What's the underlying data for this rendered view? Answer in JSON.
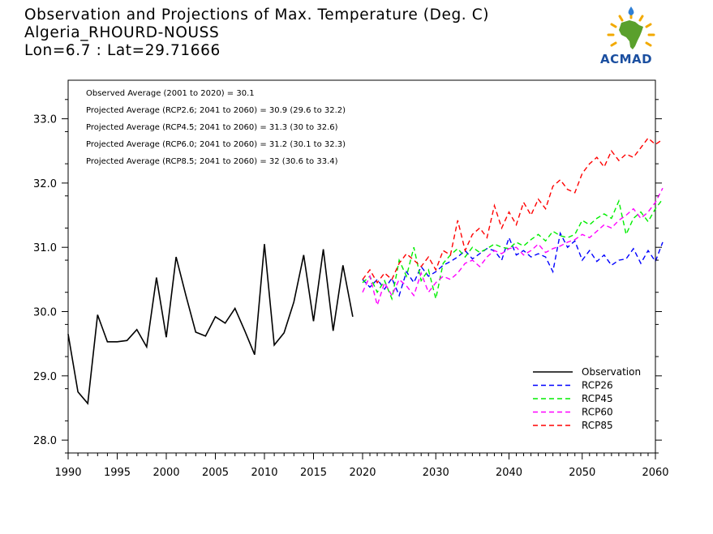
{
  "header": {
    "title_line1": "Observation and Projections of Max. Temperature (Deg. C)",
    "title_line2": "Algeria_RHOURD-NOUSS",
    "title_line3": "Lon=6.7 : Lat=29.71666"
  },
  "logo": {
    "text": "ACMAD",
    "colors": {
      "africa": "#5aa02c",
      "text": "#1b4fa0",
      "drop": "#2f7fd6",
      "rays": "#f2a900"
    }
  },
  "chart_data": {
    "type": "line",
    "xlim": [
      1990,
      2060
    ],
    "ylim": [
      27.8,
      33.6
    ],
    "x_ticks": [
      1990,
      1995,
      2000,
      2005,
      2010,
      2015,
      2020,
      2030,
      2040,
      2050,
      2060
    ],
    "y_ticks": [
      28.0,
      29.0,
      30.0,
      31.0,
      32.0,
      33.0
    ],
    "y_tick_labels": [
      "28.0",
      "29.0",
      "30.0",
      "31.0",
      "32.0",
      "33.0"
    ],
    "grid": false,
    "legend_position": "bottom-right",
    "annotations": [
      "Observed Average (2001 to 2020) = 30.1",
      "Projected Average (RCP2.6; 2041 to 2060) = 30.9 (29.6 to 32.2)",
      "Projected Average (RCP4.5; 2041 to 2060) = 31.3 (30 to 32.6)",
      "Projected Average (RCP6.0; 2041 to 2060) = 31.2 (30.1 to 32.3)",
      "Projected Average (RCP8.5; 2041 to 2060) = 32 (30.6 to 33.4)"
    ],
    "series": [
      {
        "name": "Observation",
        "color": "#000000",
        "dash": "solid",
        "start_year": 1990,
        "values": [
          29.65,
          28.75,
          28.57,
          29.95,
          29.53,
          29.53,
          29.55,
          29.72,
          29.45,
          30.53,
          29.6,
          30.85,
          30.25,
          29.68,
          29.62,
          29.92,
          29.82,
          30.05,
          29.7,
          29.33,
          31.05,
          29.48,
          29.67,
          30.15,
          30.88,
          29.85,
          30.97,
          29.7,
          30.72,
          29.92
        ]
      },
      {
        "name": "RCP26",
        "color": "#0000ff",
        "dash": "dashed",
        "start_year": 2020,
        "values": [
          30.5,
          30.38,
          30.5,
          30.35,
          30.52,
          30.25,
          30.62,
          30.45,
          30.7,
          30.55,
          30.62,
          30.72,
          30.78,
          30.85,
          30.95,
          30.82,
          30.9,
          30.98,
          30.95,
          30.8,
          31.15,
          30.88,
          30.95,
          30.85,
          30.9,
          30.85,
          30.62,
          31.22,
          31.0,
          31.1,
          30.8,
          30.95,
          30.78,
          30.88,
          30.72,
          30.8,
          30.82,
          30.98,
          30.75,
          30.95,
          30.78,
          31.08
        ]
      },
      {
        "name": "RCP45",
        "color": "#00ee00",
        "dash": "dashed",
        "start_year": 2020,
        "values": [
          30.45,
          30.55,
          30.3,
          30.48,
          30.2,
          30.8,
          30.55,
          31.0,
          30.48,
          30.65,
          30.2,
          30.75,
          30.88,
          30.98,
          30.85,
          31.0,
          30.92,
          30.98,
          31.05,
          31.0,
          30.98,
          31.08,
          31.02,
          31.12,
          31.2,
          31.1,
          31.25,
          31.18,
          31.15,
          31.2,
          31.42,
          31.35,
          31.45,
          31.52,
          31.45,
          31.72,
          31.2,
          31.45,
          31.55,
          31.4,
          31.6,
          31.75
        ]
      },
      {
        "name": "RCP60",
        "color": "#ff00ff",
        "dash": "dashed",
        "start_year": 2020,
        "values": [
          30.3,
          30.55,
          30.1,
          30.45,
          30.25,
          30.5,
          30.4,
          30.25,
          30.6,
          30.3,
          30.45,
          30.55,
          30.5,
          30.6,
          30.75,
          30.8,
          30.7,
          30.85,
          30.95,
          30.9,
          30.98,
          31.0,
          30.88,
          30.95,
          31.05,
          30.92,
          30.98,
          31.02,
          31.08,
          31.12,
          31.2,
          31.15,
          31.25,
          31.35,
          31.3,
          31.42,
          31.5,
          31.6,
          31.45,
          31.55,
          31.7,
          31.92
        ]
      },
      {
        "name": "RCP85",
        "color": "#ff0000",
        "dash": "dashed",
        "start_year": 2020,
        "values": [
          30.5,
          30.65,
          30.45,
          30.6,
          30.5,
          30.75,
          30.9,
          30.8,
          30.7,
          30.85,
          30.65,
          30.95,
          30.88,
          31.42,
          30.95,
          31.2,
          31.3,
          31.15,
          31.65,
          31.3,
          31.55,
          31.35,
          31.7,
          31.5,
          31.75,
          31.6,
          31.95,
          32.05,
          31.9,
          31.85,
          32.15,
          32.3,
          32.4,
          32.25,
          32.5,
          32.35,
          32.45,
          32.4,
          32.55,
          32.7,
          32.6,
          32.68
        ]
      }
    ]
  }
}
